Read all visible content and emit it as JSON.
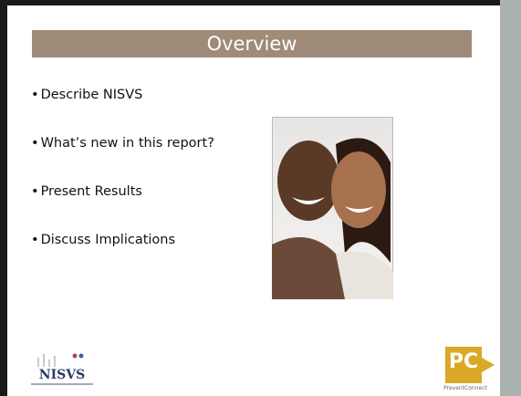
{
  "slide": {
    "title": "Overview",
    "bullets": [
      "Describe NISVS",
      "What’s new in this report?",
      "Present Results",
      "Discuss Implications"
    ],
    "logos": {
      "left": "NISVS",
      "right": "PC",
      "right_caption": "PreventConnect"
    }
  }
}
